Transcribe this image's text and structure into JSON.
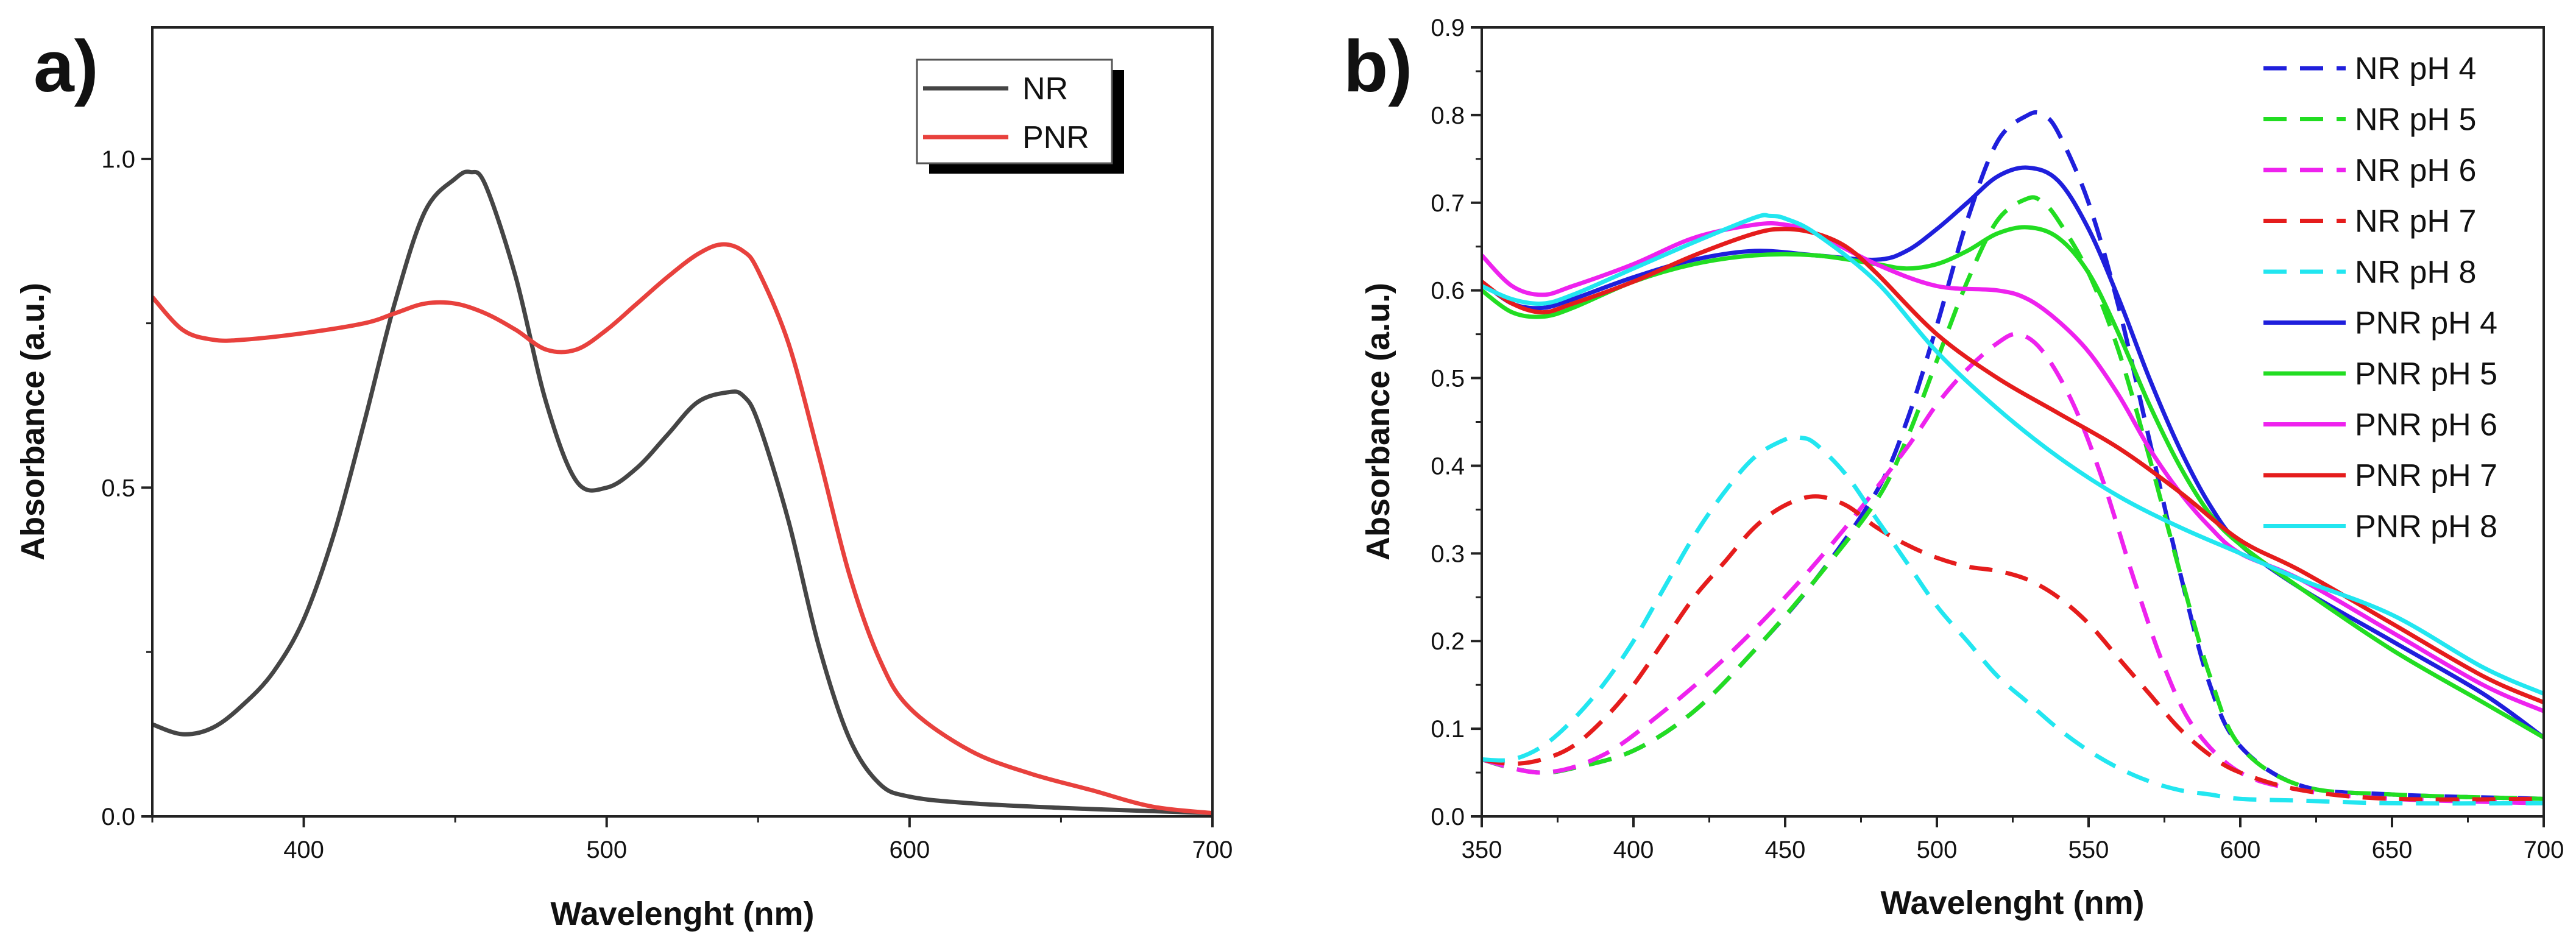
{
  "chart_data": [
    {
      "panel": "a)",
      "type": "line",
      "xlabel": "Wavelenght (nm)",
      "ylabel": "Absorbance (a.u.)",
      "xlim": [
        350,
        700
      ],
      "ylim": [
        0,
        1.2
      ],
      "xticks": [
        400,
        500,
        600,
        700
      ],
      "yticks": [
        0.0,
        0.5,
        1.0
      ],
      "x_tick_labels": [
        "400",
        "500",
        "600",
        "700"
      ],
      "y_tick_labels": [
        "0.0",
        "0.5",
        "1.0"
      ],
      "legend_position": "top-right",
      "series": [
        {
          "name": "NR",
          "color": "#454545",
          "dash": "solid",
          "x": [
            350,
            360,
            370,
            380,
            390,
            400,
            410,
            420,
            430,
            440,
            450,
            455,
            460,
            470,
            480,
            490,
            500,
            510,
            520,
            530,
            540,
            545,
            550,
            560,
            570,
            580,
            590,
            600,
            620,
            650,
            680,
            700
          ],
          "y": [
            0.14,
            0.125,
            0.135,
            0.17,
            0.22,
            0.3,
            0.43,
            0.6,
            0.78,
            0.92,
            0.97,
            0.98,
            0.96,
            0.82,
            0.63,
            0.51,
            0.5,
            0.53,
            0.58,
            0.63,
            0.645,
            0.64,
            0.6,
            0.45,
            0.26,
            0.12,
            0.05,
            0.03,
            0.02,
            0.013,
            0.008,
            0.005
          ]
        },
        {
          "name": "PNR",
          "color": "#e8413d",
          "dash": "solid",
          "x": [
            350,
            360,
            370,
            380,
            400,
            420,
            430,
            440,
            450,
            460,
            470,
            480,
            490,
            500,
            510,
            520,
            530,
            538,
            545,
            550,
            560,
            570,
            580,
            590,
            600,
            620,
            640,
            660,
            680,
            700
          ],
          "y": [
            0.79,
            0.74,
            0.725,
            0.725,
            0.735,
            0.75,
            0.765,
            0.78,
            0.78,
            0.765,
            0.74,
            0.71,
            0.71,
            0.74,
            0.78,
            0.82,
            0.855,
            0.87,
            0.86,
            0.83,
            0.72,
            0.55,
            0.37,
            0.24,
            0.165,
            0.1,
            0.065,
            0.04,
            0.015,
            0.005
          ]
        }
      ]
    },
    {
      "panel": "b)",
      "type": "line",
      "xlabel": "Wavelenght (nm)",
      "ylabel": "Absorbance (a.u.)",
      "xlim": [
        350,
        700
      ],
      "ylim": [
        0,
        0.9
      ],
      "xticks": [
        350,
        400,
        450,
        500,
        550,
        600,
        650,
        700
      ],
      "yticks": [
        0.0,
        0.1,
        0.2,
        0.3,
        0.4,
        0.5,
        0.6,
        0.7,
        0.8,
        0.9
      ],
      "x_tick_labels": [
        "350",
        "400",
        "450",
        "500",
        "550",
        "600",
        "650",
        "700"
      ],
      "y_tick_labels": [
        "0.0",
        "0.1",
        "0.2",
        "0.3",
        "0.4",
        "0.5",
        "0.6",
        "0.7",
        "0.8",
        "0.9"
      ],
      "legend_position": "top-right",
      "series": [
        {
          "name": "NR pH 4",
          "color": "#1f1fdc",
          "dash": "dashed",
          "x": [
            350,
            360,
            370,
            380,
            400,
            420,
            440,
            460,
            480,
            490,
            500,
            510,
            520,
            530,
            535,
            540,
            550,
            560,
            570,
            580,
            590,
            600,
            620,
            650,
            700
          ],
          "y": [
            0.065,
            0.055,
            0.05,
            0.055,
            0.075,
            0.12,
            0.19,
            0.27,
            0.37,
            0.45,
            0.56,
            0.68,
            0.77,
            0.8,
            0.8,
            0.78,
            0.7,
            0.58,
            0.43,
            0.28,
            0.15,
            0.08,
            0.035,
            0.025,
            0.02
          ]
        },
        {
          "name": "NR pH 5",
          "color": "#22dd22",
          "dash": "dashed",
          "x": [
            350,
            360,
            370,
            380,
            400,
            420,
            440,
            460,
            480,
            490,
            500,
            510,
            520,
            530,
            535,
            540,
            550,
            560,
            570,
            580,
            590,
            600,
            620,
            650,
            700
          ],
          "y": [
            0.065,
            0.055,
            0.05,
            0.055,
            0.075,
            0.12,
            0.19,
            0.27,
            0.36,
            0.43,
            0.52,
            0.61,
            0.68,
            0.705,
            0.7,
            0.68,
            0.62,
            0.53,
            0.41,
            0.28,
            0.16,
            0.08,
            0.035,
            0.025,
            0.02
          ]
        },
        {
          "name": "NR pH 6",
          "color": "#ee22ee",
          "dash": "dashed",
          "x": [
            350,
            370,
            390,
            410,
            430,
            450,
            470,
            490,
            500,
            510,
            520,
            527,
            535,
            545,
            555,
            565,
            575,
            585,
            600,
            620,
            650,
            700
          ],
          "y": [
            0.065,
            0.05,
            0.07,
            0.12,
            0.18,
            0.25,
            0.33,
            0.42,
            0.47,
            0.51,
            0.54,
            0.55,
            0.53,
            0.47,
            0.38,
            0.27,
            0.17,
            0.1,
            0.05,
            0.03,
            0.02,
            0.015
          ]
        },
        {
          "name": "NR pH 7",
          "color": "#e51c1c",
          "dash": "dashed",
          "x": [
            350,
            360,
            370,
            380,
            390,
            400,
            410,
            420,
            430,
            440,
            450,
            460,
            470,
            480,
            490,
            500,
            510,
            520,
            530,
            540,
            550,
            560,
            570,
            580,
            590,
            600,
            620,
            650,
            700
          ],
          "y": [
            0.065,
            0.06,
            0.065,
            0.08,
            0.11,
            0.15,
            0.2,
            0.25,
            0.29,
            0.33,
            0.355,
            0.365,
            0.355,
            0.33,
            0.31,
            0.295,
            0.285,
            0.28,
            0.27,
            0.25,
            0.22,
            0.18,
            0.14,
            0.1,
            0.07,
            0.05,
            0.03,
            0.02,
            0.02
          ]
        },
        {
          "name": "NR pH 8",
          "color": "#22e6f0",
          "dash": "dashed",
          "x": [
            350,
            360,
            370,
            380,
            390,
            400,
            410,
            420,
            430,
            440,
            450,
            455,
            460,
            470,
            480,
            490,
            500,
            510,
            520,
            530,
            540,
            550,
            560,
            570,
            580,
            590,
            600,
            620,
            650,
            700
          ],
          "y": [
            0.065,
            0.065,
            0.08,
            0.11,
            0.15,
            0.2,
            0.26,
            0.32,
            0.37,
            0.41,
            0.43,
            0.432,
            0.425,
            0.39,
            0.34,
            0.29,
            0.24,
            0.2,
            0.16,
            0.13,
            0.1,
            0.075,
            0.055,
            0.04,
            0.03,
            0.025,
            0.02,
            0.018,
            0.015,
            0.015
          ]
        },
        {
          "name": "PNR pH 4",
          "color": "#1f1fdc",
          "dash": "solid",
          "x": [
            350,
            360,
            370,
            380,
            400,
            420,
            440,
            460,
            480,
            490,
            500,
            510,
            520,
            530,
            540,
            550,
            560,
            570,
            580,
            590,
            600,
            620,
            650,
            680,
            700
          ],
          "y": [
            0.61,
            0.585,
            0.58,
            0.59,
            0.615,
            0.635,
            0.645,
            0.64,
            0.635,
            0.645,
            0.67,
            0.7,
            0.73,
            0.74,
            0.725,
            0.67,
            0.59,
            0.5,
            0.42,
            0.355,
            0.31,
            0.26,
            0.2,
            0.14,
            0.09
          ]
        },
        {
          "name": "PNR pH 5",
          "color": "#22dd22",
          "dash": "solid",
          "x": [
            350,
            360,
            370,
            380,
            400,
            420,
            440,
            460,
            480,
            490,
            500,
            510,
            520,
            530,
            540,
            550,
            560,
            570,
            580,
            590,
            600,
            620,
            650,
            680,
            700
          ],
          "y": [
            0.6,
            0.575,
            0.57,
            0.58,
            0.61,
            0.63,
            0.64,
            0.64,
            0.63,
            0.625,
            0.63,
            0.645,
            0.665,
            0.672,
            0.66,
            0.62,
            0.55,
            0.47,
            0.4,
            0.345,
            0.31,
            0.26,
            0.19,
            0.13,
            0.09
          ]
        },
        {
          "name": "PNR pH 6",
          "color": "#ee22ee",
          "dash": "solid",
          "x": [
            350,
            360,
            370,
            380,
            400,
            420,
            440,
            450,
            460,
            480,
            500,
            520,
            530,
            540,
            550,
            560,
            570,
            580,
            590,
            600,
            620,
            650,
            680,
            700
          ],
          "y": [
            0.64,
            0.605,
            0.595,
            0.605,
            0.63,
            0.66,
            0.675,
            0.675,
            0.665,
            0.63,
            0.605,
            0.6,
            0.59,
            0.565,
            0.53,
            0.48,
            0.42,
            0.37,
            0.33,
            0.3,
            0.27,
            0.21,
            0.15,
            0.12
          ]
        },
        {
          "name": "PNR pH 7",
          "color": "#e51c1c",
          "dash": "solid",
          "x": [
            350,
            360,
            370,
            380,
            400,
            420,
            440,
            450,
            460,
            470,
            480,
            500,
            520,
            540,
            560,
            580,
            600,
            620,
            650,
            680,
            700
          ],
          "y": [
            0.61,
            0.585,
            0.575,
            0.585,
            0.61,
            0.64,
            0.665,
            0.67,
            0.665,
            0.65,
            0.62,
            0.55,
            0.5,
            0.46,
            0.42,
            0.37,
            0.315,
            0.28,
            0.22,
            0.16,
            0.13
          ]
        },
        {
          "name": "PNR pH 8",
          "color": "#22e6f0",
          "dash": "solid",
          "x": [
            350,
            360,
            370,
            380,
            400,
            420,
            440,
            445,
            450,
            460,
            480,
            500,
            520,
            540,
            560,
            580,
            600,
            620,
            650,
            680,
            700
          ],
          "y": [
            0.605,
            0.59,
            0.585,
            0.595,
            0.625,
            0.655,
            0.683,
            0.685,
            0.682,
            0.665,
            0.61,
            0.53,
            0.465,
            0.41,
            0.365,
            0.33,
            0.3,
            0.27,
            0.23,
            0.17,
            0.14
          ]
        }
      ]
    }
  ]
}
